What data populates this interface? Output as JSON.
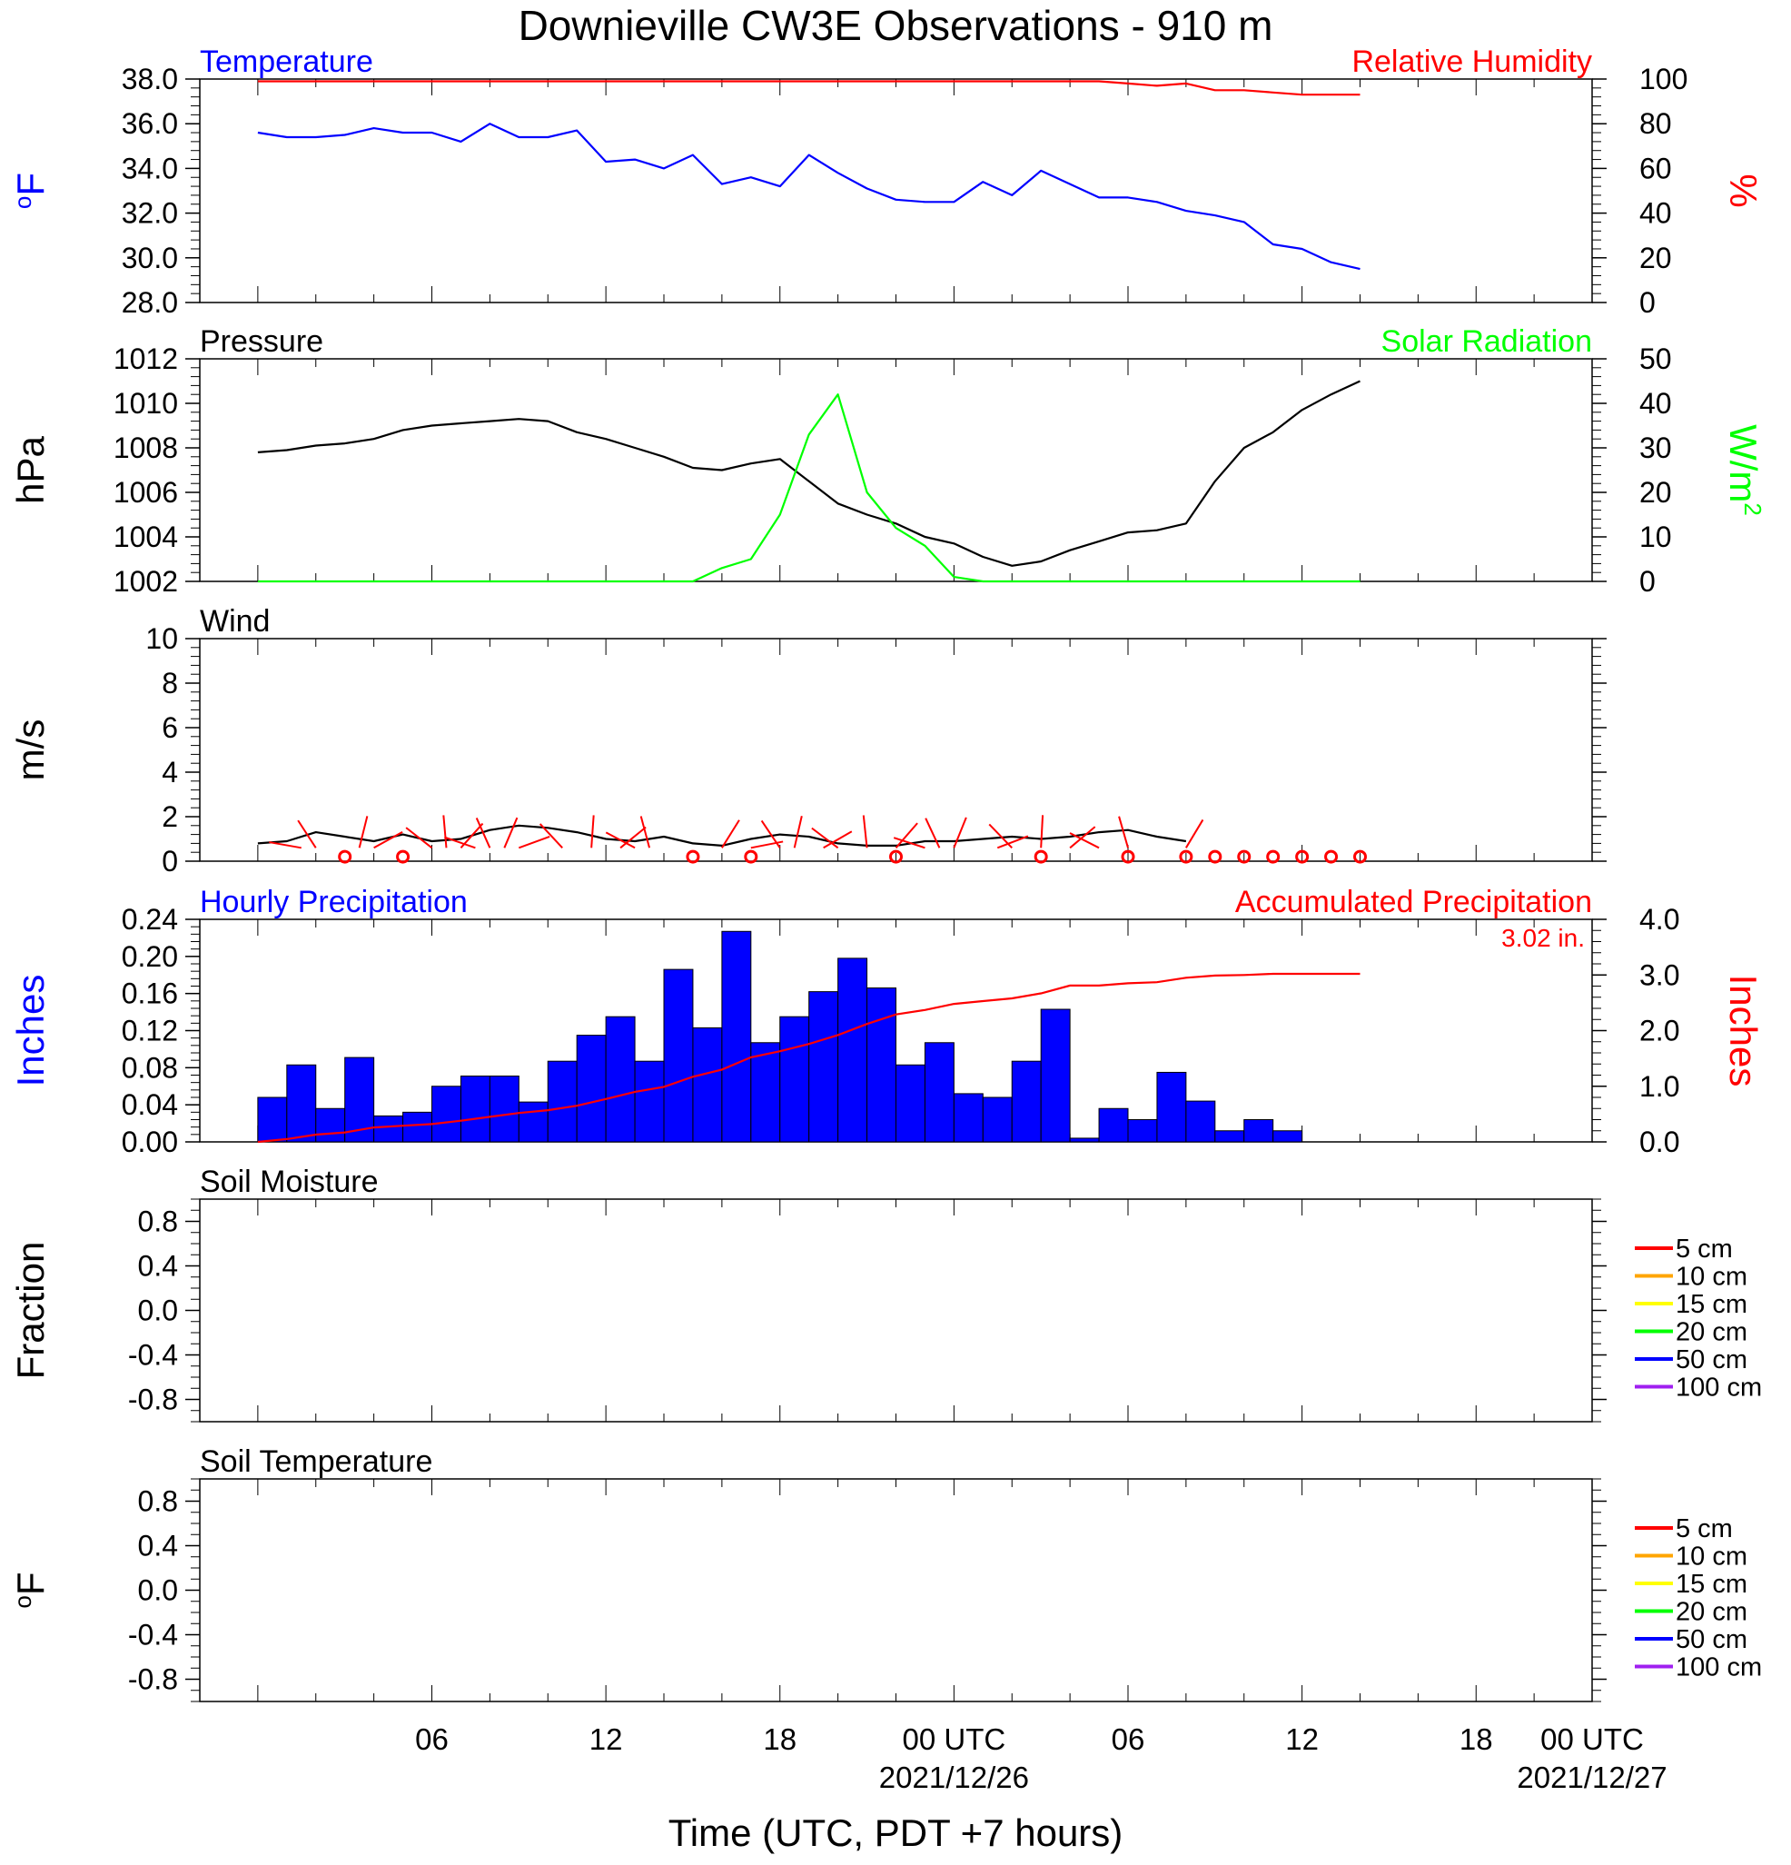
{
  "title": "Downieville CW3E Observations - 910 m",
  "x_axis": {
    "tick_labels": [
      "06",
      "12",
      "18",
      "00 UTC",
      "06",
      "12",
      "18",
      "00 UTC"
    ],
    "date_labels": [
      "2021/12/26",
      "2021/12/27"
    ],
    "xlabel": "Time (UTC, PDT +7 hours)"
  },
  "colors": {
    "blue": "#0000ff",
    "red": "#ff0000",
    "green": "#00ff00",
    "black": "#000000",
    "orange": "#ffa500",
    "yellow": "#ffff00",
    "violet": "#a020f0"
  },
  "chart_data": [
    {
      "id": "temp_rh",
      "type": "line",
      "title_left": "Temperature",
      "title_right": "Relative Humidity",
      "ylabel_left": "oF",
      "ylabel_right": "%",
      "ylim_left": [
        28,
        38
      ],
      "yticks_left": [
        "28.0",
        "30.0",
        "32.0",
        "34.0",
        "36.0",
        "38.0"
      ],
      "ylim_right": [
        0,
        100
      ],
      "yticks_right": [
        "0",
        "20",
        "40",
        "60",
        "80",
        "100"
      ],
      "x_hours": [
        0,
        1,
        2,
        3,
        4,
        5,
        6,
        7,
        8,
        9,
        10,
        11,
        12,
        13,
        14,
        15,
        16,
        17,
        18,
        19,
        20,
        21,
        22,
        23,
        24,
        25,
        26,
        27,
        28,
        29,
        30,
        31,
        32,
        33,
        34,
        35,
        36,
        37,
        38
      ],
      "series": [
        {
          "name": "Temperature",
          "axis": "left",
          "color": "blue",
          "values": [
            35.6,
            35.4,
            35.4,
            35.5,
            35.8,
            35.6,
            35.6,
            35.2,
            36.0,
            35.4,
            35.4,
            35.7,
            34.3,
            34.4,
            34.0,
            34.6,
            33.3,
            33.6,
            33.2,
            34.6,
            33.8,
            33.1,
            32.6,
            32.5,
            32.5,
            33.4,
            32.8,
            33.9,
            33.3,
            32.7,
            32.7,
            32.5,
            32.1,
            31.9,
            31.6,
            30.6,
            30.4,
            29.8,
            29.5
          ]
        },
        {
          "name": "Relative Humidity",
          "axis": "right",
          "color": "red",
          "values": [
            99,
            99,
            99,
            99,
            99,
            99,
            99,
            99,
            99,
            99,
            99,
            99,
            99,
            99,
            99,
            99,
            99,
            99,
            99,
            99,
            99,
            99,
            99,
            99,
            99,
            99,
            99,
            99,
            99,
            99,
            98,
            97,
            98,
            95,
            95,
            94,
            93,
            93,
            93
          ]
        }
      ]
    },
    {
      "id": "pressure_solar",
      "type": "line",
      "title_left": "Pressure",
      "title_right": "Solar Radiation",
      "ylabel_left": "hPa",
      "ylabel_right": "W/m2",
      "ylim_left": [
        1002,
        1012
      ],
      "yticks_left": [
        "1002",
        "1004",
        "1006",
        "1008",
        "1010",
        "1012"
      ],
      "ylim_right": [
        0,
        50
      ],
      "yticks_right": [
        "0",
        "10",
        "20",
        "30",
        "40",
        "50"
      ],
      "x_hours": [
        0,
        1,
        2,
        3,
        4,
        5,
        6,
        7,
        8,
        9,
        10,
        11,
        12,
        13,
        14,
        15,
        16,
        17,
        18,
        19,
        20,
        21,
        22,
        23,
        24,
        25,
        26,
        27,
        28,
        29,
        30,
        31,
        32,
        33,
        34,
        35,
        36,
        37,
        38
      ],
      "series": [
        {
          "name": "Pressure",
          "axis": "left",
          "color": "black",
          "values": [
            1007.8,
            1007.9,
            1008.1,
            1008.2,
            1008.4,
            1008.8,
            1009.0,
            1009.1,
            1009.2,
            1009.3,
            1009.2,
            1008.7,
            1008.4,
            1008.0,
            1007.6,
            1007.1,
            1007.0,
            1007.3,
            1007.5,
            1006.5,
            1005.5,
            1005.0,
            1004.6,
            1004.0,
            1003.7,
            1003.1,
            1002.7,
            1002.9,
            1003.4,
            1003.8,
            1004.2,
            1004.3,
            1004.6,
            1006.5,
            1008.0,
            1008.7,
            1009.7,
            1010.4,
            1011.0
          ]
        },
        {
          "name": "Solar Radiation",
          "axis": "right",
          "color": "green",
          "values": [
            0,
            0,
            0,
            0,
            0,
            0,
            0,
            0,
            0,
            0,
            0,
            0,
            0,
            0,
            0,
            0,
            3,
            5,
            15,
            33,
            42,
            20,
            12,
            8,
            1,
            0,
            0,
            0,
            0,
            0,
            0,
            0,
            0,
            0,
            0,
            0,
            0,
            0,
            0
          ]
        }
      ]
    },
    {
      "id": "wind",
      "type": "line",
      "title_left": "Wind",
      "ylabel_left": "m/s",
      "ylim_left": [
        0,
        10
      ],
      "yticks_left": [
        "0",
        "2",
        "4",
        "6",
        "8",
        "10"
      ],
      "x_hours": [
        0,
        1,
        2,
        3,
        4,
        5,
        6,
        7,
        8,
        9,
        10,
        11,
        12,
        13,
        14,
        15,
        16,
        17,
        18,
        19,
        20,
        21,
        22,
        23,
        24,
        25,
        26,
        27,
        28,
        29,
        30,
        31,
        32,
        33,
        34,
        35,
        36,
        37,
        38
      ],
      "series": [
        {
          "name": "Wind Speed",
          "axis": "left",
          "color": "black",
          "values": [
            0.8,
            0.9,
            1.3,
            1.1,
            0.9,
            1.2,
            0.9,
            1.0,
            1.4,
            1.6,
            1.5,
            1.3,
            1.0,
            0.9,
            1.1,
            0.8,
            0.7,
            1.0,
            1.2,
            1.1,
            0.8,
            0.7,
            0.7,
            0.9,
            0.9,
            1.0,
            1.1,
            1.0,
            1.1,
            1.3,
            1.4,
            1.1,
            0.9,
            null,
            null,
            null,
            null,
            null,
            null
          ]
        }
      ],
      "barbs_hours": [
        1.5,
        2,
        3.5,
        4,
        6,
        6.5,
        7,
        7.5,
        8,
        8.5,
        9,
        10.5,
        11.5,
        12.5,
        13,
        13.5,
        16,
        17,
        18,
        18.5,
        19.5,
        20,
        21,
        22,
        23,
        23.5,
        24,
        25.5,
        26,
        27,
        28,
        29,
        30,
        32
      ],
      "calm_hours": [
        3,
        5,
        15,
        17,
        22,
        27,
        30,
        32,
        33,
        34,
        35,
        36,
        37,
        38
      ]
    },
    {
      "id": "precip",
      "type": "bar",
      "title_left": "Hourly Precipitation",
      "title_right": "Accumulated Precipitation",
      "annotation": "3.02 in.",
      "ylabel_left": "Inches",
      "ylabel_right": "Inches",
      "ylim_left": [
        0,
        0.24
      ],
      "yticks_left": [
        "0.00",
        "0.04",
        "0.08",
        "0.12",
        "0.16",
        "0.20",
        "0.24"
      ],
      "ylim_right": [
        0,
        4
      ],
      "yticks_right": [
        "0.0",
        "1.0",
        "2.0",
        "3.0",
        "4.0"
      ],
      "bar_start_hours": [
        0,
        1,
        2,
        3,
        4,
        5,
        6,
        7,
        8,
        9,
        10,
        11,
        12,
        13,
        14,
        15,
        16,
        17,
        18,
        19,
        20,
        21,
        22,
        23,
        24,
        25,
        26,
        27,
        28,
        29,
        30,
        31,
        32,
        33,
        34,
        35
      ],
      "hourly": [
        0.048,
        0.083,
        0.036,
        0.091,
        0.028,
        0.032,
        0.06,
        0.071,
        0.071,
        0.043,
        0.087,
        0.115,
        0.135,
        0.087,
        0.186,
        0.123,
        0.227,
        0.107,
        0.135,
        0.162,
        0.198,
        0.166,
        0.083,
        0.107,
        0.052,
        0.048,
        0.087,
        0.143,
        0.004,
        0.036,
        0.024,
        0.075,
        0.044,
        0.012,
        0.024,
        0.012
      ],
      "accum_hours": [
        0,
        1,
        2,
        3,
        4,
        5,
        6,
        7,
        8,
        9,
        10,
        11,
        12,
        13,
        14,
        15,
        16,
        17,
        18,
        19,
        20,
        21,
        22,
        23,
        24,
        25,
        26,
        27,
        28,
        29,
        30,
        31,
        32,
        33,
        34,
        35,
        36,
        37,
        38
      ],
      "accumulated": [
        0.0,
        0.05,
        0.13,
        0.17,
        0.26,
        0.29,
        0.32,
        0.38,
        0.45,
        0.52,
        0.57,
        0.65,
        0.77,
        0.9,
        0.99,
        1.17,
        1.3,
        1.52,
        1.63,
        1.76,
        1.92,
        2.12,
        2.29,
        2.37,
        2.48,
        2.53,
        2.58,
        2.67,
        2.81,
        2.81,
        2.85,
        2.87,
        2.95,
        2.99,
        3.0,
        3.02,
        3.02,
        3.02,
        3.02
      ]
    },
    {
      "id": "soil_moisture",
      "type": "line",
      "title_left": "Soil Moisture",
      "ylabel_left": "Fraction",
      "ylim_left": [
        -1,
        1
      ],
      "yticks_left": [
        "-0.8",
        "-0.4",
        "0.0",
        "0.4",
        "0.8"
      ],
      "series": [],
      "legend": [
        {
          "label": "5 cm",
          "color": "red"
        },
        {
          "label": "10 cm",
          "color": "orange"
        },
        {
          "label": "15 cm",
          "color": "yellow"
        },
        {
          "label": "20 cm",
          "color": "green"
        },
        {
          "label": "50 cm",
          "color": "blue"
        },
        {
          "label": "100 cm",
          "color": "violet"
        }
      ]
    },
    {
      "id": "soil_temperature",
      "type": "line",
      "title_left": "Soil Temperature",
      "ylabel_left": "oF",
      "ylim_left": [
        -1,
        1
      ],
      "yticks_left": [
        "-0.8",
        "-0.4",
        "0.0",
        "0.4",
        "0.8"
      ],
      "series": [],
      "legend": [
        {
          "label": "5 cm",
          "color": "red"
        },
        {
          "label": "10 cm",
          "color": "orange"
        },
        {
          "label": "15 cm",
          "color": "yellow"
        },
        {
          "label": "20 cm",
          "color": "green"
        },
        {
          "label": "50 cm",
          "color": "blue"
        },
        {
          "label": "100 cm",
          "color": "violet"
        }
      ]
    }
  ]
}
